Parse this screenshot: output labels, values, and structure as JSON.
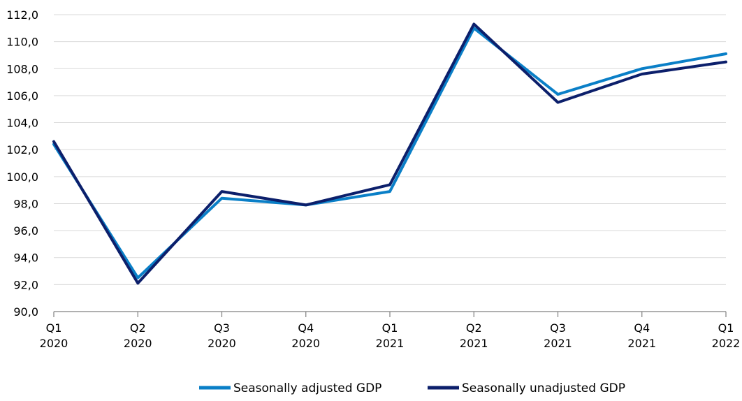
{
  "chart_data": {
    "type": "line",
    "title": "",
    "xlabel": "",
    "ylabel": "",
    "categories": [
      [
        "Q1",
        "2020"
      ],
      [
        "Q2",
        "2020"
      ],
      [
        "Q3",
        "2020"
      ],
      [
        "Q4",
        "2020"
      ],
      [
        "Q1",
        "2021"
      ],
      [
        "Q2",
        "2021"
      ],
      [
        "Q3",
        "2021"
      ],
      [
        "Q4",
        "2021"
      ],
      [
        "Q1",
        "2022"
      ]
    ],
    "ylim": [
      90,
      112
    ],
    "yticks": [
      "90,0",
      "92,0",
      "94,0",
      "96,0",
      "98,0",
      "100,0",
      "102,0",
      "104,0",
      "106,0",
      "108,0",
      "110,0",
      "112,0"
    ],
    "grid": "horizontal",
    "legend_position": "bottom-right",
    "series": [
      {
        "name": "Seasonally adjusted GDP",
        "color": "#0a7fc7",
        "values": [
          102.4,
          92.5,
          98.4,
          97.9,
          98.9,
          111.0,
          106.1,
          108.0,
          109.1
        ]
      },
      {
        "name": "Seasonally unadjusted GDP",
        "color": "#0c1f6b",
        "values": [
          102.6,
          92.1,
          98.9,
          97.9,
          99.4,
          111.3,
          105.5,
          107.6,
          108.5
        ]
      }
    ]
  }
}
